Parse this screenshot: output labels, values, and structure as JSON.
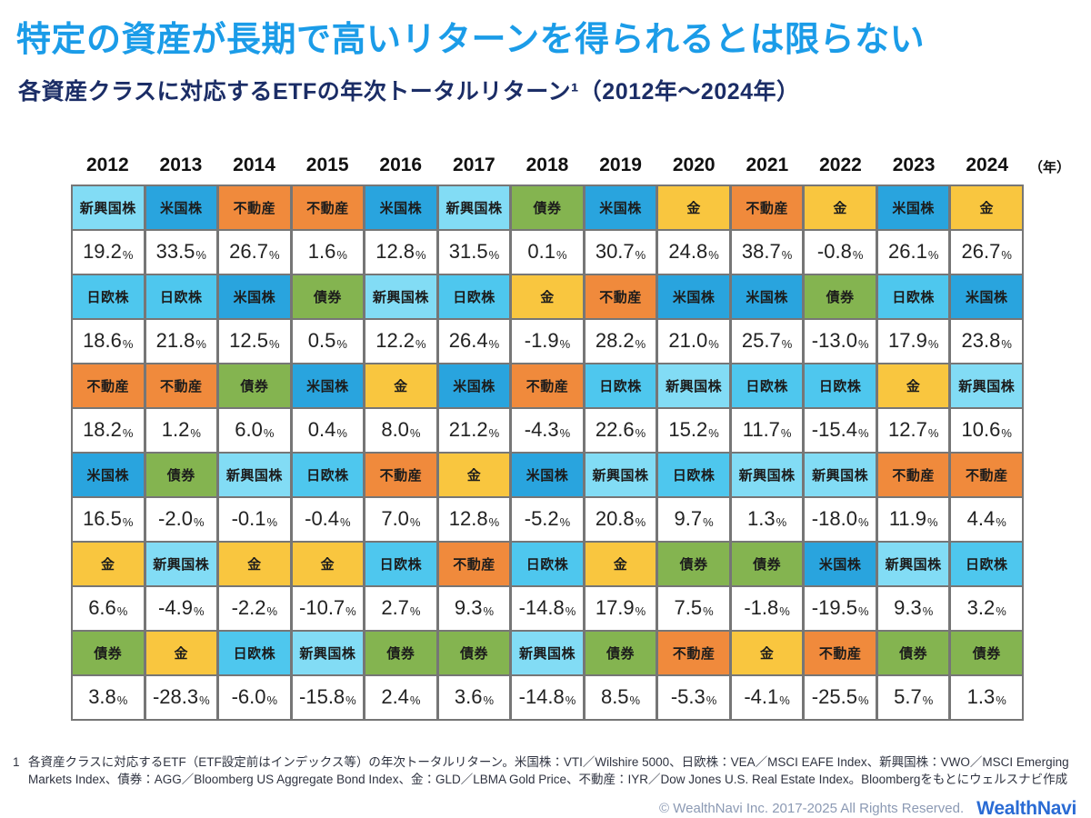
{
  "header": {
    "title": "特定の資産が長期で高いリターンを得られるとは限らない",
    "subtitle": "各資産クラスに対応するETFの年次トータルリターン¹（2012年～2024年）",
    "title_color": "#1b9ce8",
    "subtitle_color": "#1b2d66"
  },
  "footnote": {
    "marker": "1",
    "line1": "各資産クラスに対応するETF（ETF設定前はインデックス等）の年次トータルリターン。米国株：VTI／Wilshire 5000、日欧株：VEA／MSCI EAFE Index、新興国株：VWO／MSCI Emerging",
    "line2": "Markets Index、債券：AGG／Bloomberg US Aggregate Bond Index、金：GLD／LBMA Gold Price、不動産：IYR／Dow Jones U.S. Real Estate Index。Bloombergをもとにウェルスナビ作成"
  },
  "footer": {
    "copyright": "© WealthNavi Inc. 2017-2025 All Rights Reserved.",
    "logo_text": "WealthNavi",
    "logo_color": "#2a6bd4"
  },
  "chart_data": {
    "type": "table",
    "title": "特定の資産が長期で高いリターンを得られるとは限らない",
    "subtitle": "各資産クラスに対応するETFの年次トータルリターン（2012年～2024年）",
    "unit": "%",
    "percent_suffix": "%",
    "year_axis_suffix": "（年）",
    "years": [
      "2012",
      "2013",
      "2014",
      "2015",
      "2016",
      "2017",
      "2018",
      "2019",
      "2020",
      "2021",
      "2022",
      "2023",
      "2024"
    ],
    "asset_colors": {
      "新興国株": "#82dcf5",
      "日欧株": "#4ec7ee",
      "米国株": "#29a4de",
      "不動産": "#f08a3c",
      "債券": "#84b450",
      "金": "#f9c63f"
    },
    "columns": [
      {
        "year": "2012",
        "ranking": [
          {
            "asset": "新興国株",
            "value": "19.2"
          },
          {
            "asset": "日欧株",
            "value": "18.6"
          },
          {
            "asset": "不動産",
            "value": "18.2"
          },
          {
            "asset": "米国株",
            "value": "16.5"
          },
          {
            "asset": "金",
            "value": "6.6"
          },
          {
            "asset": "債券",
            "value": "3.8"
          }
        ]
      },
      {
        "year": "2013",
        "ranking": [
          {
            "asset": "米国株",
            "value": "33.5"
          },
          {
            "asset": "日欧株",
            "value": "21.8"
          },
          {
            "asset": "不動産",
            "value": "1.2"
          },
          {
            "asset": "債券",
            "value": "-2.0"
          },
          {
            "asset": "新興国株",
            "value": "-4.9"
          },
          {
            "asset": "金",
            "value": "-28.3"
          }
        ]
      },
      {
        "year": "2014",
        "ranking": [
          {
            "asset": "不動産",
            "value": "26.7"
          },
          {
            "asset": "米国株",
            "value": "12.5"
          },
          {
            "asset": "債券",
            "value": "6.0"
          },
          {
            "asset": "新興国株",
            "value": "-0.1"
          },
          {
            "asset": "金",
            "value": "-2.2"
          },
          {
            "asset": "日欧株",
            "value": "-6.0"
          }
        ]
      },
      {
        "year": "2015",
        "ranking": [
          {
            "asset": "不動産",
            "value": "1.6"
          },
          {
            "asset": "債券",
            "value": "0.5"
          },
          {
            "asset": "米国株",
            "value": "0.4"
          },
          {
            "asset": "日欧株",
            "value": "-0.4"
          },
          {
            "asset": "金",
            "value": "-10.7"
          },
          {
            "asset": "新興国株",
            "value": "-15.8"
          }
        ]
      },
      {
        "year": "2016",
        "ranking": [
          {
            "asset": "米国株",
            "value": "12.8"
          },
          {
            "asset": "新興国株",
            "value": "12.2"
          },
          {
            "asset": "金",
            "value": "8.0"
          },
          {
            "asset": "不動産",
            "value": "7.0"
          },
          {
            "asset": "日欧株",
            "value": "2.7"
          },
          {
            "asset": "債券",
            "value": "2.4"
          }
        ]
      },
      {
        "year": "2017",
        "ranking": [
          {
            "asset": "新興国株",
            "value": "31.5"
          },
          {
            "asset": "日欧株",
            "value": "26.4"
          },
          {
            "asset": "米国株",
            "value": "21.2"
          },
          {
            "asset": "金",
            "value": "12.8"
          },
          {
            "asset": "不動産",
            "value": "9.3"
          },
          {
            "asset": "債券",
            "value": "3.6"
          }
        ]
      },
      {
        "year": "2018",
        "ranking": [
          {
            "asset": "債券",
            "value": "0.1"
          },
          {
            "asset": "金",
            "value": "-1.9"
          },
          {
            "asset": "不動産",
            "value": "-4.3"
          },
          {
            "asset": "米国株",
            "value": "-5.2"
          },
          {
            "asset": "日欧株",
            "value": "-14.8"
          },
          {
            "asset": "新興国株",
            "value": "-14.8"
          }
        ]
      },
      {
        "year": "2019",
        "ranking": [
          {
            "asset": "米国株",
            "value": "30.7"
          },
          {
            "asset": "不動産",
            "value": "28.2"
          },
          {
            "asset": "日欧株",
            "value": "22.6"
          },
          {
            "asset": "新興国株",
            "value": "20.8"
          },
          {
            "asset": "金",
            "value": "17.9"
          },
          {
            "asset": "債券",
            "value": "8.5"
          }
        ]
      },
      {
        "year": "2020",
        "ranking": [
          {
            "asset": "金",
            "value": "24.8"
          },
          {
            "asset": "米国株",
            "value": "21.0"
          },
          {
            "asset": "新興国株",
            "value": "15.2"
          },
          {
            "asset": "日欧株",
            "value": "9.7"
          },
          {
            "asset": "債券",
            "value": "7.5"
          },
          {
            "asset": "不動産",
            "value": "-5.3"
          }
        ]
      },
      {
        "year": "2021",
        "ranking": [
          {
            "asset": "不動産",
            "value": "38.7"
          },
          {
            "asset": "米国株",
            "value": "25.7"
          },
          {
            "asset": "日欧株",
            "value": "11.7"
          },
          {
            "asset": "新興国株",
            "value": "1.3"
          },
          {
            "asset": "債券",
            "value": "-1.8"
          },
          {
            "asset": "金",
            "value": "-4.1"
          }
        ]
      },
      {
        "year": "2022",
        "ranking": [
          {
            "asset": "金",
            "value": "-0.8"
          },
          {
            "asset": "債券",
            "value": "-13.0"
          },
          {
            "asset": "日欧株",
            "value": "-15.4"
          },
          {
            "asset": "新興国株",
            "value": "-18.0"
          },
          {
            "asset": "米国株",
            "value": "-19.5"
          },
          {
            "asset": "不動産",
            "value": "-25.5"
          }
        ]
      },
      {
        "year": "2023",
        "ranking": [
          {
            "asset": "米国株",
            "value": "26.1"
          },
          {
            "asset": "日欧株",
            "value": "17.9"
          },
          {
            "asset": "金",
            "value": "12.7"
          },
          {
            "asset": "不動産",
            "value": "11.9"
          },
          {
            "asset": "新興国株",
            "value": "9.3"
          },
          {
            "asset": "債券",
            "value": "5.7"
          }
        ]
      },
      {
        "year": "2024",
        "ranking": [
          {
            "asset": "金",
            "value": "26.7"
          },
          {
            "asset": "米国株",
            "value": "23.8"
          },
          {
            "asset": "新興国株",
            "value": "10.6"
          },
          {
            "asset": "不動産",
            "value": "4.4"
          },
          {
            "asset": "日欧株",
            "value": "3.2"
          },
          {
            "asset": "債券",
            "value": "1.3"
          }
        ]
      }
    ]
  }
}
